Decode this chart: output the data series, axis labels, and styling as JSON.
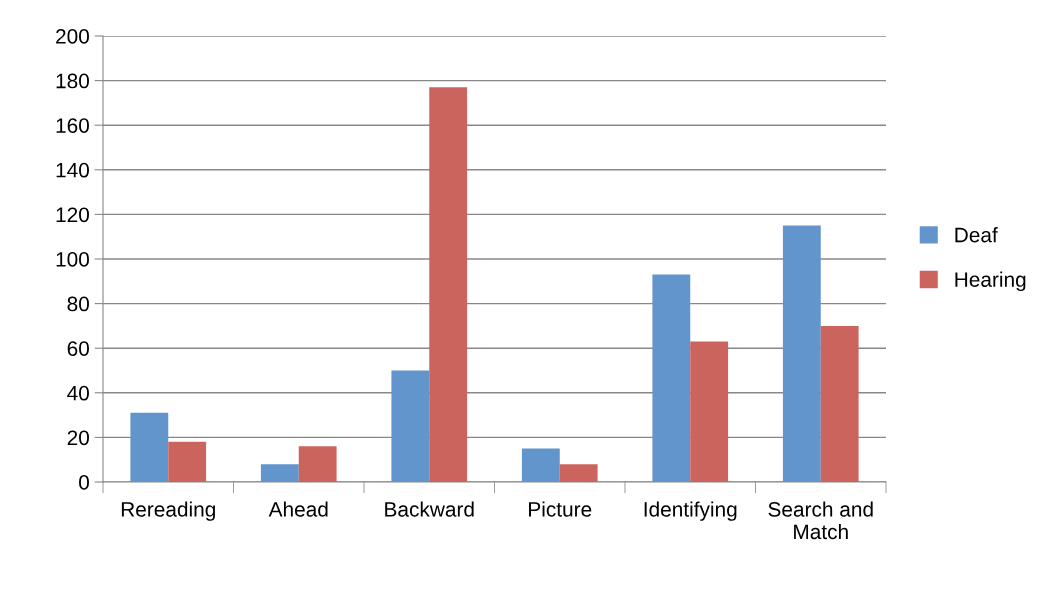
{
  "chart_data": {
    "type": "bar",
    "categories": [
      "Rereading",
      "Ahead",
      "Backward",
      "Picture",
      "Identifying",
      "Search and\nMatch"
    ],
    "series": [
      {
        "name": "Deaf",
        "color": "#6195cb",
        "values": [
          31,
          8,
          50,
          15,
          93,
          115
        ]
      },
      {
        "name": "Hearing",
        "color": "#cc645e",
        "values": [
          18,
          16,
          177,
          8,
          63,
          70
        ]
      }
    ],
    "ylim": [
      0,
      200
    ],
    "yticks": [
      0,
      20,
      40,
      60,
      80,
      100,
      120,
      140,
      160,
      180,
      200
    ],
    "grid": "y",
    "legend": "right"
  }
}
